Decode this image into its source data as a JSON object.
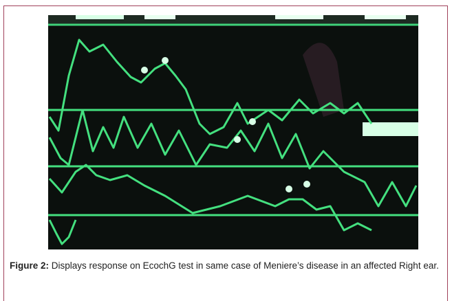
{
  "figure": {
    "label": "Figure 2:",
    "caption": "Displays response on EcochG test in same case of Meniere’s disease in an affected Right ear."
  }
}
